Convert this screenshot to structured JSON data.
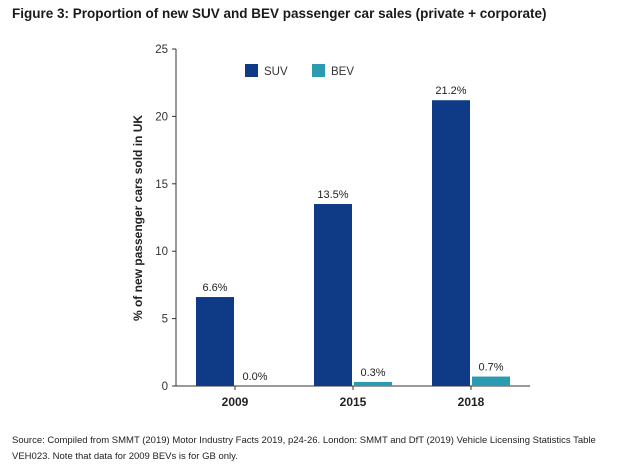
{
  "figure": {
    "title": "Figure 3: Proportion of new SUV and BEV passenger car sales (private + corporate)",
    "source": "Source: Compiled from SMMT (2019) Motor Industry Facts 2019, p24-26. London: SMMT and DfT (2019) Vehicle Licensing Statistics Table VEH023. Note that data for 2009 BEVs is for GB only."
  },
  "chart_data": {
    "type": "bar",
    "categories": [
      "2009",
      "2015",
      "2018"
    ],
    "series": [
      {
        "name": "SUV",
        "values": [
          6.6,
          13.5,
          21.2
        ],
        "labels": [
          "6.6%",
          "13.5%",
          "21.2%"
        ],
        "color": "#0e3a86"
      },
      {
        "name": "BEV",
        "values": [
          0.0,
          0.3,
          0.7
        ],
        "labels": [
          "0.0%",
          "0.3%",
          "0.7%"
        ],
        "color": "#2a9bb0"
      }
    ],
    "ylabel": "% of new passenger cars sold in UK",
    "ylim": [
      0,
      25
    ],
    "yticks": [
      0,
      5,
      10,
      15,
      20,
      25
    ],
    "legend_position": "top-center",
    "grid": false
  }
}
